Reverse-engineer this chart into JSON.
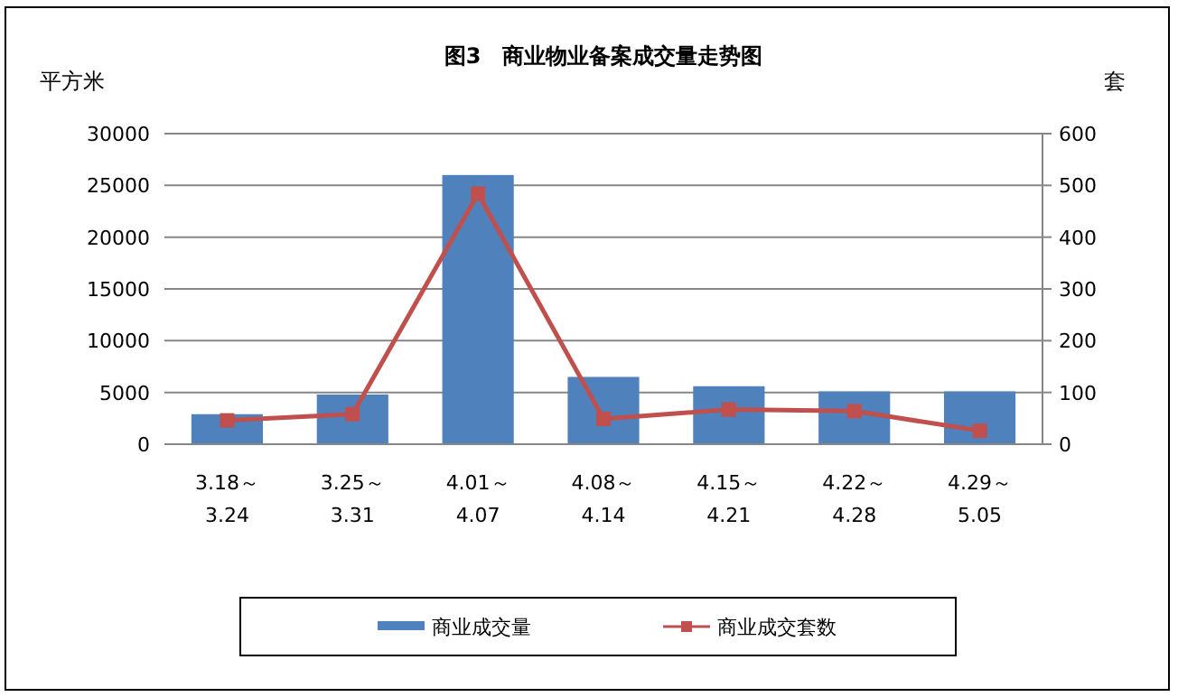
{
  "chart_data": {
    "type": "bar",
    "title": "图3　商业物业备案成交量走势图",
    "ylabel": "平方米",
    "y2label": "套",
    "categories": [
      "3.18～\n3.24",
      "3.25～\n3.31",
      "4.01～\n4.07",
      "4.08～\n4.14",
      "4.15～\n4.21",
      "4.22～\n4.28",
      "4.29～\n5.05"
    ],
    "series": [
      {
        "name": "商业成交量",
        "color": "#4f81bd",
        "values": [
          2900,
          4800,
          26000,
          6500,
          5600,
          5100,
          5100
        ]
      },
      {
        "name": "商业成交套数",
        "type": "line",
        "axis": "y2",
        "marker": "square",
        "color": "#c0504d",
        "values": [
          46,
          58,
          484,
          49,
          67,
          64,
          26
        ]
      }
    ],
    "ylim": [
      0,
      30000
    ],
    "yticks": [
      0,
      5000,
      10000,
      15000,
      20000,
      25000,
      30000
    ],
    "y2lim": [
      0,
      600
    ],
    "y2ticks": [
      0,
      100,
      200,
      300,
      400,
      500,
      600
    ],
    "grid": "y",
    "legend": "bottom"
  }
}
